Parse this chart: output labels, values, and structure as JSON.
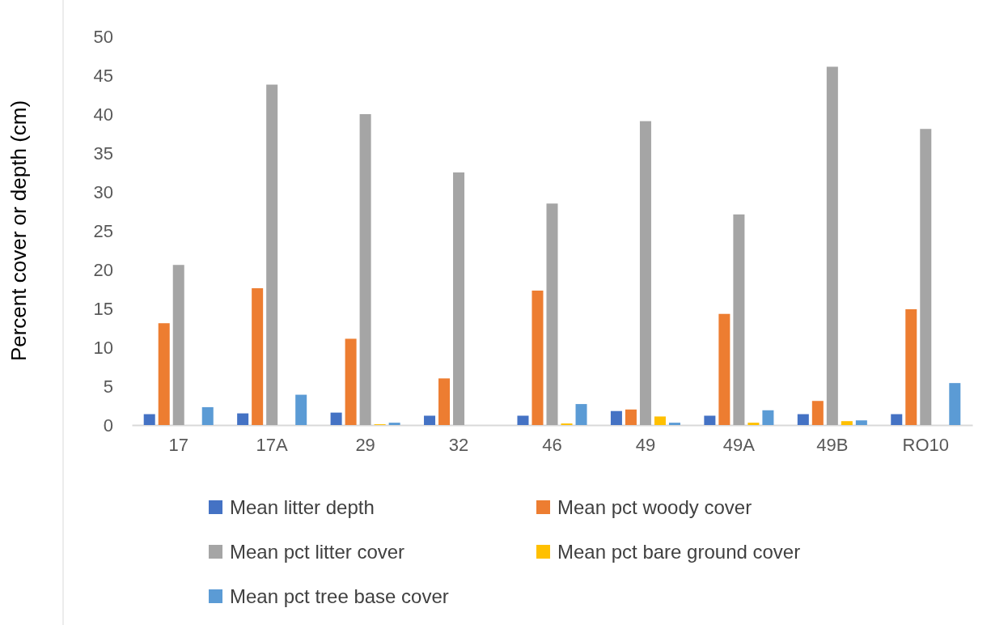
{
  "chart_data": {
    "type": "bar",
    "ylabel": "Percent cover or depth (cm)",
    "categories": [
      "17",
      "17A",
      "29",
      "32",
      "46",
      "49",
      "49A",
      "49B",
      "RO10"
    ],
    "series": [
      {
        "name": "Mean litter depth",
        "color": "#4472c4",
        "values": [
          1.4,
          1.5,
          1.6,
          1.2,
          1.2,
          1.8,
          1.2,
          1.4,
          1.4
        ]
      },
      {
        "name": "Mean pct woody cover",
        "color": "#ed7d31",
        "values": [
          13.1,
          17.6,
          11.1,
          6.0,
          17.3,
          2.0,
          14.3,
          3.1,
          14.9
        ]
      },
      {
        "name": "Mean pct litter cover",
        "color": "#a5a5a5",
        "values": [
          20.6,
          43.8,
          40.0,
          32.5,
          28.5,
          39.1,
          27.1,
          46.1,
          38.1
        ]
      },
      {
        "name": "Mean pct bare ground cover",
        "color": "#ffc000",
        "values": [
          0,
          0,
          0.1,
          0,
          0.2,
          1.1,
          0.3,
          0.5,
          0
        ]
      },
      {
        "name": "Mean pct tree base cover",
        "color": "#5b9bd5",
        "values": [
          2.3,
          3.9,
          0.3,
          0,
          2.7,
          0.3,
          1.9,
          0.6,
          5.4
        ]
      }
    ],
    "ylim": [
      0,
      50
    ],
    "yticks": [
      0,
      5,
      10,
      15,
      20,
      25,
      30,
      35,
      40,
      45,
      50
    ],
    "grid": false,
    "legend": "bottom"
  }
}
